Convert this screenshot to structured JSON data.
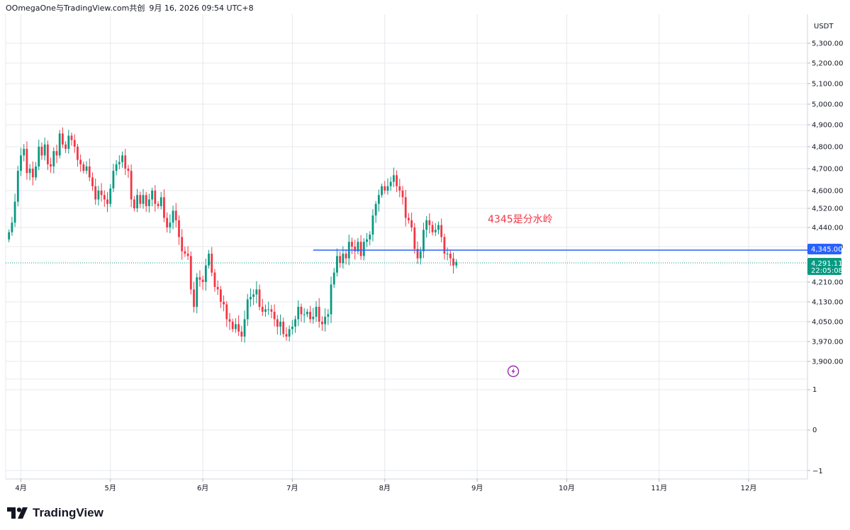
{
  "header": {
    "source": "OOmegaOne与TradingView.com共创",
    "timestamp": "9月 16, 2026 09:54 UTC+8"
  },
  "brand": {
    "name": "TradingView",
    "icon": "tradingview-logo-icon"
  },
  "axis": {
    "currency": "USDT"
  },
  "colors": {
    "up": "#089981",
    "down": "#f23645",
    "level_line": "#2962ff",
    "grid": "#e6e8ec",
    "annotation": "#f23645",
    "indicator_icon": "#9c27b0"
  },
  "annotation": {
    "text": "4345是分水岭"
  },
  "indicator": {
    "icon": "lightning-icon"
  },
  "price_tags": {
    "level_value": "4,345.00",
    "last_price": "4,291.11",
    "countdown": "22:05:08"
  },
  "chart_data": {
    "type": "candlestick",
    "title": "",
    "y_unit": "USDT",
    "y_ticks": [
      "5,300.00",
      "5,200.00",
      "5,100.00",
      "5,000.00",
      "4,900.00",
      "4,800.00",
      "4,700.00",
      "4,600.00",
      "4,520.00",
      "4,440.00",
      "4,360.00",
      "4,210.00",
      "4,130.00",
      "4,050.00",
      "3,970.00",
      "3,900.00"
    ],
    "y_tick_values": [
      5300,
      5200,
      5100,
      5000,
      4900,
      4800,
      4700,
      4600,
      4520,
      4440,
      4360,
      4210,
      4130,
      4050,
      3970,
      3900
    ],
    "x_ticks": [
      "4月",
      "5月",
      "6月",
      "7月",
      "8月",
      "9月",
      "10月",
      "11月",
      "12月"
    ],
    "x_tick_dates": [
      "2026-04-01",
      "2026-05-01",
      "2026-06-01",
      "2026-07-01",
      "2026-08-01",
      "2026-09-01",
      "2026-10-01",
      "2026-11-01",
      "2026-12-01"
    ],
    "level_line": {
      "value": 4345,
      "start_date": "2026-07-08"
    },
    "last_price": 4291.11,
    "candles_start_date": "2026-03-28",
    "closes": [
      4420,
      4460,
      4550,
      4690,
      4760,
      4790,
      4680,
      4700,
      4660,
      4710,
      4800,
      4760,
      4810,
      4720,
      4710,
      4780,
      4760,
      4860,
      4810,
      4790,
      4850,
      4830,
      4800,
      4740,
      4720,
      4690,
      4710,
      4660,
      4620,
      4560,
      4600,
      4580,
      4560,
      4540,
      4610,
      4690,
      4720,
      4730,
      4760,
      4700,
      4690,
      4560,
      4520,
      4580,
      4540,
      4580,
      4530,
      4560,
      4600,
      4540,
      4530,
      4570,
      4480,
      4440,
      4460,
      4510,
      4470,
      4400,
      4340,
      4330,
      4320,
      4180,
      4110,
      4230,
      4220,
      4210,
      4280,
      4330,
      4250,
      4190,
      4180,
      4130,
      4120,
      4060,
      4050,
      4020,
      4040,
      4010,
      3990,
      4060,
      4140,
      4150,
      4160,
      4180,
      4110,
      4090,
      4100,
      4100,
      4090,
      4060,
      4030,
      4050,
      4000,
      3990,
      4020,
      4030,
      4060,
      4110,
      4080,
      4080,
      4090,
      4060,
      4070,
      4110,
      4050,
      4040,
      4070,
      4080,
      4200,
      4250,
      4320,
      4290,
      4330,
      4310,
      4380,
      4360,
      4340,
      4380,
      4320,
      4380,
      4390,
      4410,
      4490,
      4540,
      4580,
      4620,
      4600,
      4620,
      4640,
      4670,
      4620,
      4600,
      4570,
      4480,
      4470,
      4440,
      4350,
      4310,
      4340,
      4430,
      4470,
      4450,
      4420,
      4430,
      4450,
      4400,
      4330,
      4330,
      4310,
      4280,
      4295
    ]
  }
}
